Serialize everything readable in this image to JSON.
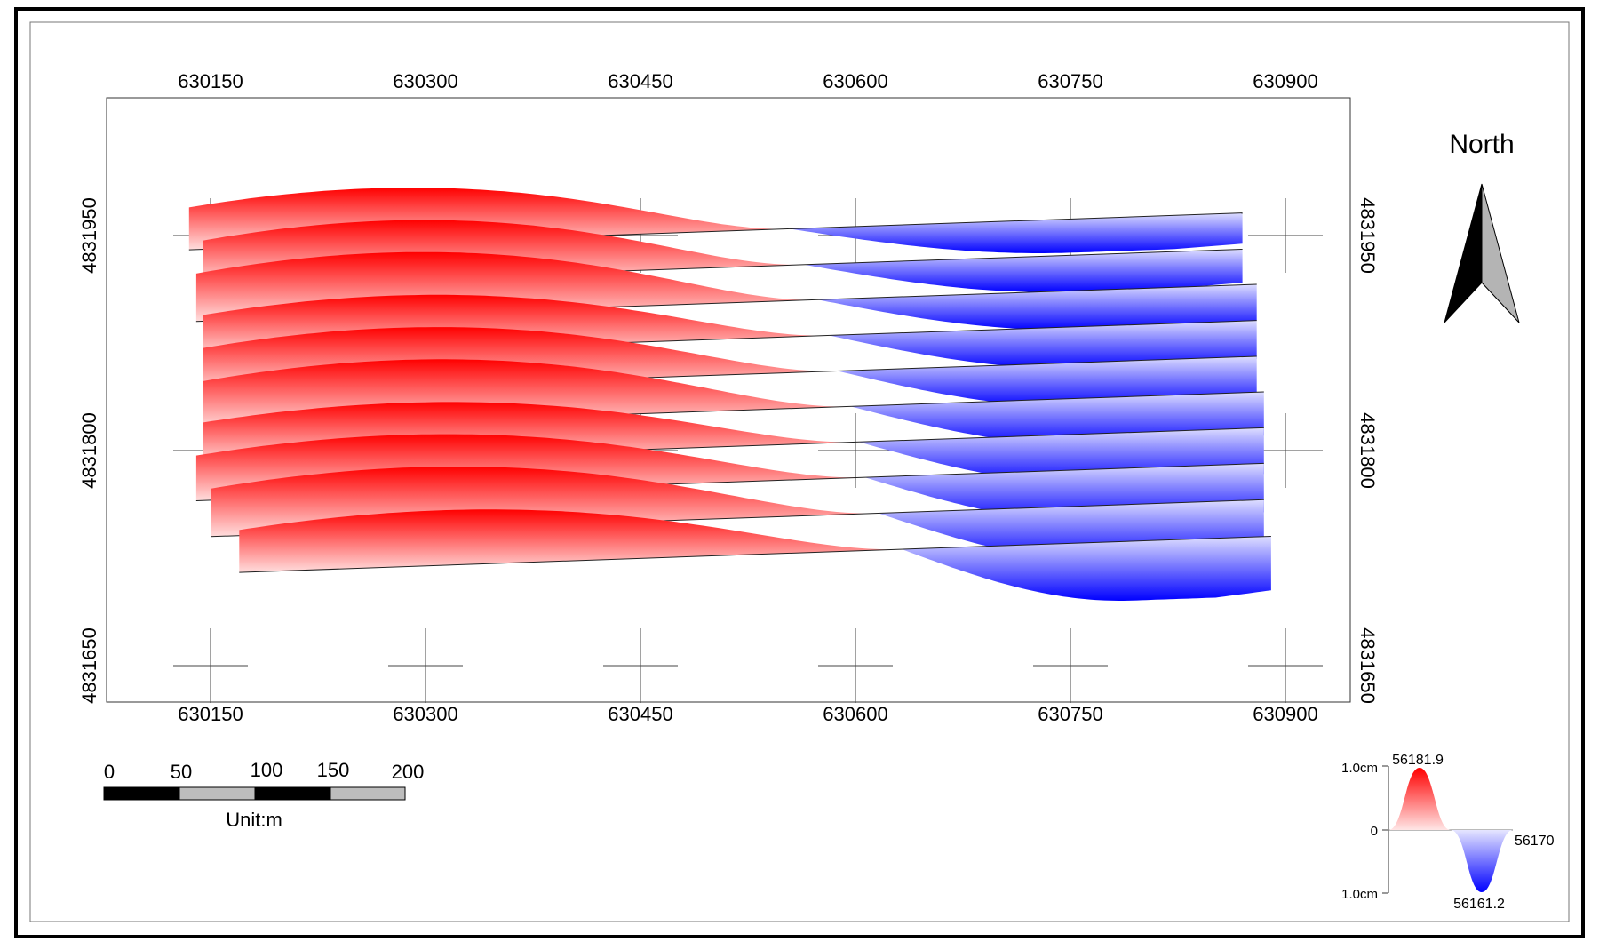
{
  "map": {
    "x_ticks": [
      "630150",
      "630300",
      "630450",
      "630600",
      "630750",
      "630900"
    ],
    "y_ticks": [
      "4831950",
      "4831800",
      "4831650"
    ],
    "north_label": "North",
    "scale_bar": {
      "tick_labels": [
        "0",
        "50",
        "100",
        "150",
        "200"
      ],
      "unit_label": "Unit:m"
    },
    "legend": {
      "max_value": "56181.9",
      "baseline_value": "56170",
      "min_value": "56161.2",
      "upper_label": "1.0cm",
      "zero_label": "0",
      "lower_label": "1.0cm"
    },
    "colors": {
      "positive": "#ff0000",
      "negative": "#0000ff",
      "frame": "#000000"
    },
    "profile_lines": [
      {
        "y": 4831940,
        "x_start": 630135,
        "x_end": 630870
      },
      {
        "y": 4831915,
        "x_start": 630145,
        "x_end": 630870
      },
      {
        "y": 4831890,
        "x_start": 630140,
        "x_end": 630880
      },
      {
        "y": 4831865,
        "x_start": 630145,
        "x_end": 630880
      },
      {
        "y": 4831840,
        "x_start": 630145,
        "x_end": 630880
      },
      {
        "y": 4831815,
        "x_start": 630145,
        "x_end": 630885
      },
      {
        "y": 4831790,
        "x_start": 630145,
        "x_end": 630885
      },
      {
        "y": 4831765,
        "x_start": 630140,
        "x_end": 630885
      },
      {
        "y": 4831740,
        "x_start": 630150,
        "x_end": 630885
      },
      {
        "y": 4831715,
        "x_start": 630170,
        "x_end": 630890
      }
    ]
  }
}
